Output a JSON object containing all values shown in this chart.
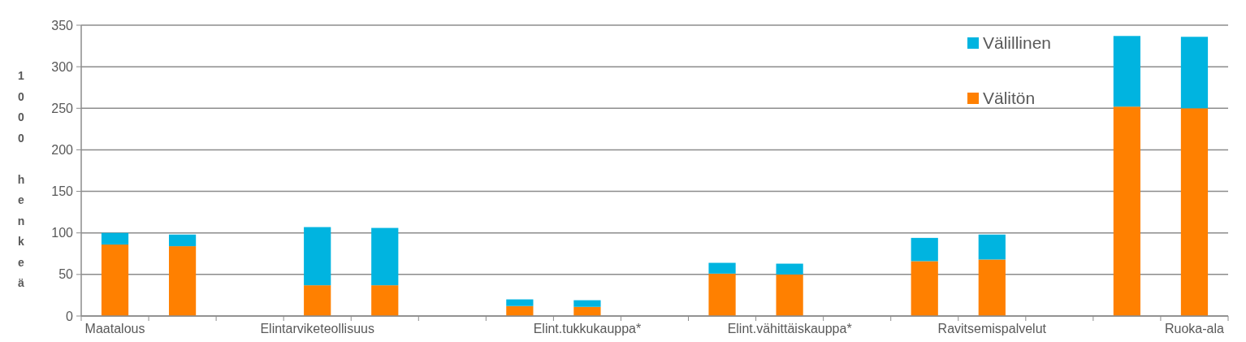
{
  "chart_data": {
    "type": "bar",
    "stacked": true,
    "ylabel": "1000 henkeä",
    "categories": [
      "Maatalous",
      null,
      null,
      "Elintarviketeollisuus",
      null,
      null,
      null,
      "Elint.tukkukauppa*",
      null,
      null,
      "Elint.vähittäiskauppa*",
      null,
      null,
      "Ravitsemispalvelut",
      null,
      null,
      "Ruoka-ala"
    ],
    "series": [
      {
        "name": "Välitön",
        "color": "#ff8000",
        "values": [
          86,
          84,
          null,
          37,
          37,
          null,
          12,
          11,
          null,
          51,
          50,
          null,
          66,
          68,
          null,
          252,
          250
        ]
      },
      {
        "name": "Välillinen",
        "color": "#00b4e0",
        "values": [
          14,
          14,
          null,
          70,
          69,
          null,
          8,
          8,
          null,
          13,
          13,
          null,
          28,
          30,
          null,
          85,
          86
        ]
      }
    ],
    "ylim": [
      0,
      350
    ],
    "yticks": [
      0,
      50,
      100,
      150,
      200,
      250,
      300,
      350
    ],
    "grid": "y",
    "legend": "top right"
  }
}
